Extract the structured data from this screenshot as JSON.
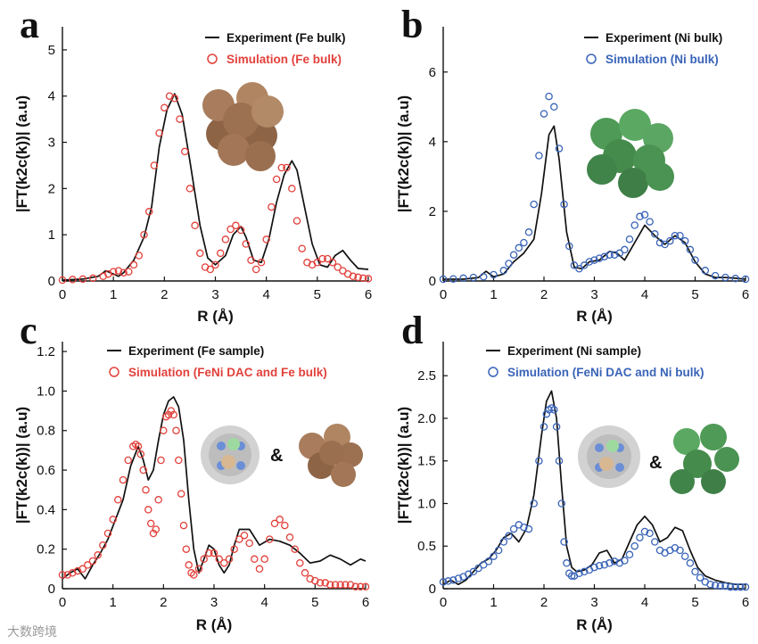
{
  "figure": {
    "watermark": "大数跨境",
    "ampersand": "&"
  },
  "palette": {
    "black": "#111111",
    "red": "#e2413b",
    "blue": "#3a64b8",
    "fe_cluster": "#a87c5c",
    "ni_cluster": "#4e9a56"
  },
  "chart_data": [
    {
      "panel": "a",
      "type": "line",
      "xlabel": "R (Å)",
      "ylabel": "|FT(k2c(k))| (a.u)",
      "xlim": [
        0,
        6
      ],
      "ylim": [
        0,
        5.5
      ],
      "xticks": [
        "0",
        "1",
        "2",
        "3",
        "4",
        "5",
        "6"
      ],
      "yticks": [
        "0",
        "1",
        "2",
        "3",
        "4",
        "5"
      ],
      "legend": [
        "Experiment (Fe bulk)",
        "Simulation (Fe bulk)"
      ],
      "series": [
        {
          "name": "Experiment (Fe bulk)",
          "style": "line",
          "color": "#111111",
          "x": [
            0,
            0.4,
            0.7,
            0.85,
            1.0,
            1.1,
            1.2,
            1.4,
            1.6,
            1.75,
            1.9,
            2.05,
            2.2,
            2.35,
            2.5,
            2.7,
            2.85,
            3.0,
            3.2,
            3.35,
            3.5,
            3.6,
            3.75,
            3.9,
            4.05,
            4.2,
            4.35,
            4.5,
            4.6,
            4.75,
            4.9,
            5.05,
            5.2,
            5.35,
            5.5,
            5.65,
            5.8,
            6.0
          ],
          "y": [
            0.02,
            0.04,
            0.1,
            0.22,
            0.15,
            0.1,
            0.18,
            0.45,
            0.95,
            1.6,
            2.9,
            3.7,
            4.05,
            3.6,
            2.6,
            1.2,
            0.5,
            0.35,
            0.55,
            1.0,
            1.18,
            0.95,
            0.45,
            0.4,
            0.9,
            1.7,
            2.3,
            2.6,
            2.4,
            1.6,
            0.8,
            0.35,
            0.3,
            0.55,
            0.66,
            0.45,
            0.27,
            0.25
          ]
        },
        {
          "name": "Simulation (Fe bulk)",
          "style": "markers",
          "color": "#e2413b",
          "x": [
            0,
            0.2,
            0.4,
            0.6,
            0.8,
            0.9,
            1.0,
            1.1,
            1.2,
            1.3,
            1.4,
            1.5,
            1.6,
            1.7,
            1.8,
            1.9,
            2.0,
            2.1,
            2.2,
            2.3,
            2.4,
            2.5,
            2.6,
            2.7,
            2.8,
            2.9,
            3.0,
            3.1,
            3.2,
            3.3,
            3.4,
            3.5,
            3.6,
            3.7,
            3.8,
            3.9,
            4.0,
            4.1,
            4.2,
            4.3,
            4.4,
            4.5,
            4.6,
            4.7,
            4.8,
            4.9,
            5.0,
            5.1,
            5.2,
            5.3,
            5.4,
            5.5,
            5.6,
            5.7,
            5.8,
            5.9,
            6.0
          ],
          "y": [
            0.02,
            0.03,
            0.04,
            0.06,
            0.1,
            0.15,
            0.2,
            0.22,
            0.18,
            0.2,
            0.35,
            0.55,
            1.0,
            1.5,
            2.5,
            3.2,
            3.75,
            4.0,
            3.95,
            3.5,
            2.8,
            2.0,
            1.2,
            0.6,
            0.3,
            0.25,
            0.35,
            0.6,
            0.9,
            1.12,
            1.2,
            1.1,
            0.8,
            0.45,
            0.25,
            0.4,
            0.9,
            1.6,
            2.2,
            2.45,
            2.45,
            2.0,
            1.3,
            0.7,
            0.4,
            0.35,
            0.4,
            0.48,
            0.48,
            0.4,
            0.3,
            0.22,
            0.15,
            0.1,
            0.08,
            0.06,
            0.05
          ]
        }
      ]
    },
    {
      "panel": "b",
      "type": "line",
      "xlabel": "R (Å)",
      "ylabel": "|FT(k2c(k))| (a.u)",
      "xlim": [
        0,
        6
      ],
      "ylim": [
        0,
        7.3
      ],
      "xticks": [
        "0",
        "1",
        "2",
        "3",
        "4",
        "5",
        "6"
      ],
      "yticks": [
        "0",
        "2",
        "4",
        "6"
      ],
      "legend": [
        "Experiment (Ni bulk)",
        "Simulation (Ni bulk)"
      ],
      "series": [
        {
          "name": "Experiment (Ni bulk)",
          "style": "line",
          "color": "#111111",
          "x": [
            0,
            0.4,
            0.7,
            0.85,
            1.0,
            1.2,
            1.4,
            1.6,
            1.8,
            1.95,
            2.1,
            2.2,
            2.3,
            2.45,
            2.6,
            2.75,
            2.9,
            3.1,
            3.3,
            3.45,
            3.6,
            3.8,
            4.0,
            4.2,
            4.4,
            4.6,
            4.8,
            5.0,
            5.2,
            5.4,
            5.6,
            5.8,
            6.0
          ],
          "y": [
            0.05,
            0.05,
            0.1,
            0.28,
            0.12,
            0.2,
            0.55,
            0.8,
            1.2,
            2.5,
            4.2,
            4.45,
            3.5,
            1.4,
            0.4,
            0.35,
            0.55,
            0.6,
            0.85,
            0.8,
            0.6,
            1.1,
            1.6,
            1.3,
            1.05,
            1.3,
            1.1,
            0.55,
            0.2,
            0.1,
            0.1,
            0.08,
            0.05
          ]
        },
        {
          "name": "Simulation (Ni bulk)",
          "style": "markers",
          "color": "#3a64b8",
          "x": [
            0,
            0.2,
            0.4,
            0.6,
            0.8,
            1.0,
            1.2,
            1.3,
            1.4,
            1.5,
            1.6,
            1.7,
            1.8,
            1.9,
            2.0,
            2.1,
            2.2,
            2.3,
            2.4,
            2.5,
            2.6,
            2.7,
            2.8,
            2.9,
            3.0,
            3.1,
            3.2,
            3.3,
            3.4,
            3.5,
            3.6,
            3.7,
            3.8,
            3.9,
            4.0,
            4.1,
            4.2,
            4.3,
            4.4,
            4.5,
            4.6,
            4.7,
            4.8,
            4.9,
            5.0,
            5.2,
            5.4,
            5.6,
            5.8,
            6.0
          ],
          "y": [
            0.05,
            0.06,
            0.08,
            0.1,
            0.12,
            0.18,
            0.3,
            0.5,
            0.75,
            0.95,
            1.1,
            1.4,
            2.2,
            3.6,
            4.8,
            5.3,
            5.0,
            3.8,
            2.2,
            1.0,
            0.45,
            0.35,
            0.45,
            0.55,
            0.6,
            0.65,
            0.7,
            0.75,
            0.75,
            0.8,
            0.9,
            1.2,
            1.6,
            1.85,
            1.9,
            1.7,
            1.35,
            1.1,
            1.05,
            1.15,
            1.3,
            1.3,
            1.15,
            0.9,
            0.6,
            0.3,
            0.15,
            0.1,
            0.07,
            0.05
          ]
        }
      ]
    },
    {
      "panel": "c",
      "type": "line",
      "xlabel": "R (Å)",
      "ylabel": "|FT(k2c(k))| (a.u)",
      "xlim": [
        0,
        6
      ],
      "ylim": [
        0,
        1.25
      ],
      "xticks": [
        "0",
        "1",
        "2",
        "3",
        "4",
        "5",
        "6"
      ],
      "yticks": [
        "0",
        "0.2",
        "0.4",
        "0.6",
        "0.8",
        "1.0",
        "1.2"
      ],
      "legend": [
        "Experiment (Fe sample)",
        "Simulation (FeNi DAC and Fe bulk)"
      ],
      "series": [
        {
          "name": "Experiment (Fe sample)",
          "style": "line",
          "color": "#111111",
          "x": [
            0,
            0.15,
            0.3,
            0.45,
            0.6,
            0.75,
            0.9,
            1.05,
            1.2,
            1.35,
            1.5,
            1.6,
            1.7,
            1.8,
            1.9,
            2.0,
            2.1,
            2.2,
            2.3,
            2.4,
            2.5,
            2.6,
            2.7,
            2.8,
            2.9,
            3.0,
            3.1,
            3.2,
            3.3,
            3.4,
            3.5,
            3.7,
            3.9,
            4.1,
            4.3,
            4.5,
            4.7,
            4.9,
            5.1,
            5.3,
            5.5,
            5.7,
            5.9,
            6.0
          ],
          "y": [
            0.05,
            0.08,
            0.1,
            0.05,
            0.12,
            0.18,
            0.25,
            0.35,
            0.45,
            0.62,
            0.72,
            0.65,
            0.55,
            0.6,
            0.75,
            0.88,
            0.95,
            0.97,
            0.92,
            0.75,
            0.45,
            0.2,
            0.08,
            0.15,
            0.22,
            0.2,
            0.12,
            0.08,
            0.12,
            0.22,
            0.3,
            0.3,
            0.22,
            0.25,
            0.24,
            0.22,
            0.18,
            0.13,
            0.14,
            0.17,
            0.15,
            0.12,
            0.15,
            0.14
          ]
        },
        {
          "name": "Simulation (FeNi DAC and Fe bulk)",
          "style": "markers",
          "color": "#e2413b",
          "x": [
            0,
            0.1,
            0.2,
            0.3,
            0.4,
            0.5,
            0.6,
            0.7,
            0.8,
            0.9,
            1.0,
            1.1,
            1.2,
            1.3,
            1.4,
            1.45,
            1.5,
            1.55,
            1.6,
            1.65,
            1.7,
            1.75,
            1.8,
            1.85,
            1.9,
            1.95,
            2.0,
            2.05,
            2.1,
            2.15,
            2.2,
            2.25,
            2.3,
            2.35,
            2.4,
            2.45,
            2.5,
            2.55,
            2.6,
            2.7,
            2.8,
            2.9,
            3.0,
            3.1,
            3.2,
            3.3,
            3.4,
            3.5,
            3.6,
            3.7,
            3.8,
            3.9,
            4.0,
            4.1,
            4.2,
            4.3,
            4.4,
            4.5,
            4.6,
            4.7,
            4.8,
            4.9,
            5.0,
            5.1,
            5.2,
            5.3,
            5.4,
            5.5,
            5.6,
            5.7,
            5.8,
            5.9,
            6.0
          ],
          "y": [
            0.07,
            0.07,
            0.08,
            0.09,
            0.1,
            0.12,
            0.14,
            0.17,
            0.22,
            0.28,
            0.35,
            0.45,
            0.55,
            0.65,
            0.72,
            0.73,
            0.72,
            0.68,
            0.6,
            0.5,
            0.4,
            0.33,
            0.28,
            0.3,
            0.45,
            0.65,
            0.8,
            0.87,
            0.88,
            0.9,
            0.88,
            0.8,
            0.65,
            0.48,
            0.32,
            0.2,
            0.12,
            0.08,
            0.07,
            0.1,
            0.15,
            0.18,
            0.18,
            0.15,
            0.13,
            0.15,
            0.2,
            0.25,
            0.27,
            0.23,
            0.15,
            0.1,
            0.15,
            0.25,
            0.33,
            0.35,
            0.32,
            0.26,
            0.2,
            0.13,
            0.08,
            0.05,
            0.04,
            0.03,
            0.03,
            0.02,
            0.02,
            0.02,
            0.02,
            0.02,
            0.01,
            0.01,
            0.01
          ]
        }
      ]
    },
    {
      "panel": "d",
      "type": "line",
      "xlabel": "R (Å)",
      "ylabel": "|FT(k2c(k))| (a.u)",
      "xlim": [
        0,
        6
      ],
      "ylim": [
        0,
        2.9
      ],
      "xticks": [
        "0",
        "1",
        "2",
        "3",
        "4",
        "5",
        "6"
      ],
      "yticks": [
        "0",
        "0.5",
        "1.0",
        "1.5",
        "2.0",
        "2.5"
      ],
      "legend": [
        "Experiment (Ni sample)",
        "Simulation (FeNi DAC and Ni bulk)"
      ],
      "series": [
        {
          "name": "Experiment (Ni sample)",
          "style": "line",
          "color": "#111111",
          "x": [
            0,
            0.15,
            0.3,
            0.45,
            0.6,
            0.75,
            0.9,
            1.05,
            1.2,
            1.35,
            1.5,
            1.65,
            1.8,
            1.95,
            2.05,
            2.15,
            2.25,
            2.35,
            2.45,
            2.55,
            2.65,
            2.8,
            2.95,
            3.1,
            3.25,
            3.4,
            3.55,
            3.7,
            3.85,
            4.0,
            4.15,
            4.3,
            4.45,
            4.6,
            4.75,
            4.9,
            5.05,
            5.2,
            5.4,
            5.6,
            5.8,
            6.0
          ],
          "y": [
            0.05,
            0.1,
            0.05,
            0.1,
            0.2,
            0.3,
            0.35,
            0.45,
            0.6,
            0.65,
            0.55,
            0.7,
            1.1,
            1.8,
            2.2,
            2.32,
            2.0,
            1.2,
            0.5,
            0.25,
            0.2,
            0.22,
            0.28,
            0.42,
            0.45,
            0.3,
            0.35,
            0.55,
            0.75,
            0.85,
            0.75,
            0.55,
            0.6,
            0.72,
            0.68,
            0.45,
            0.25,
            0.15,
            0.1,
            0.07,
            0.05,
            0.05
          ]
        },
        {
          "name": "Simulation (FeNi DAC and Ni bulk)",
          "style": "markers",
          "color": "#3a64b8",
          "x": [
            0,
            0.1,
            0.2,
            0.3,
            0.4,
            0.5,
            0.6,
            0.7,
            0.8,
            0.9,
            1.0,
            1.1,
            1.2,
            1.3,
            1.4,
            1.5,
            1.6,
            1.7,
            1.8,
            1.9,
            2.0,
            2.05,
            2.1,
            2.15,
            2.2,
            2.25,
            2.3,
            2.35,
            2.4,
            2.45,
            2.5,
            2.55,
            2.6,
            2.7,
            2.8,
            2.9,
            3.0,
            3.1,
            3.2,
            3.3,
            3.4,
            3.5,
            3.6,
            3.7,
            3.8,
            3.9,
            4.0,
            4.1,
            4.2,
            4.3,
            4.4,
            4.5,
            4.6,
            4.7,
            4.8,
            4.9,
            5.0,
            5.1,
            5.2,
            5.3,
            5.4,
            5.5,
            5.6,
            5.7,
            5.8,
            5.9,
            6.0
          ],
          "y": [
            0.08,
            0.09,
            0.1,
            0.12,
            0.14,
            0.17,
            0.2,
            0.24,
            0.28,
            0.32,
            0.38,
            0.45,
            0.55,
            0.62,
            0.7,
            0.75,
            0.72,
            0.7,
            1.0,
            1.5,
            1.9,
            2.05,
            2.1,
            2.12,
            2.1,
            1.9,
            1.5,
            1.0,
            0.55,
            0.3,
            0.18,
            0.15,
            0.15,
            0.18,
            0.2,
            0.22,
            0.25,
            0.27,
            0.28,
            0.3,
            0.32,
            0.3,
            0.33,
            0.4,
            0.5,
            0.6,
            0.67,
            0.65,
            0.55,
            0.45,
            0.42,
            0.45,
            0.48,
            0.45,
            0.38,
            0.3,
            0.2,
            0.13,
            0.08,
            0.05,
            0.04,
            0.03,
            0.03,
            0.02,
            0.02,
            0.02,
            0.02
          ]
        }
      ]
    }
  ]
}
